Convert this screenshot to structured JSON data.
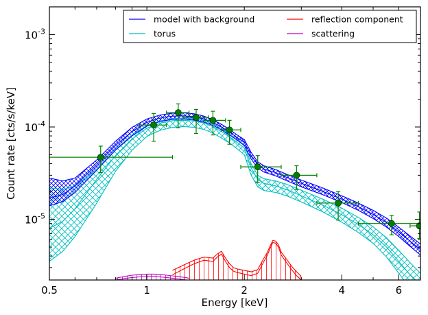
{
  "chart_data": {
    "type": "line",
    "xlabel": "Energy [keV]",
    "ylabel": "Count rate [cts/s/keV]",
    "xscale": "log",
    "yscale": "log",
    "xlim": [
      0.5,
      7.0
    ],
    "ylim": [
      2.2e-06,
      0.002
    ],
    "grid": false,
    "legend_position": "top-right",
    "x_ticks": [
      {
        "value": 0.5,
        "label": "0.5"
      },
      {
        "value": 1,
        "label": "1"
      },
      {
        "value": 2,
        "label": "2"
      },
      {
        "value": 4,
        "label": "4"
      },
      {
        "value": 6,
        "label": "6"
      }
    ],
    "y_ticks": [
      {
        "value": 1e-05,
        "base": "10",
        "exp": "-5"
      },
      {
        "value": 0.0001,
        "base": "10",
        "exp": "-4"
      },
      {
        "value": 0.001,
        "base": "10",
        "exp": "-3"
      }
    ],
    "legend": [
      {
        "label": "model with background",
        "color": "#0000ff"
      },
      {
        "label": "reflection component",
        "color": "#ff0000"
      },
      {
        "label": "torus",
        "color": "#00bfbf"
      },
      {
        "label": "scattering",
        "color": "#bf00bf"
      }
    ],
    "series": [
      {
        "name": "model with background",
        "color": "#0000ff",
        "x": [
          0.5,
          0.55,
          0.6,
          0.7,
          0.8,
          0.9,
          1.0,
          1.1,
          1.2,
          1.3,
          1.4,
          1.5,
          1.6,
          1.7,
          1.8,
          1.9,
          2.0,
          2.1,
          2.2,
          2.3,
          2.5,
          2.7,
          3.0,
          3.5,
          4.0,
          4.5,
          5.0,
          5.5,
          6.0,
          6.5,
          7.0
        ],
        "y": [
          1.7e-05,
          1.85e-05,
          2.3e-05,
          3.9e-05,
          6.3e-05,
          8.9e-05,
          0.000112,
          0.000125,
          0.000131,
          0.000132,
          0.000129,
          0.000122,
          0.000112,
          0.0001,
          8.8e-05,
          7.7e-05,
          6.8e-05,
          4.9e-05,
          3.9e-05,
          3.5e-05,
          3.2e-05,
          2.85e-05,
          2.45e-05,
          2e-05,
          1.65e-05,
          1.37e-05,
          1.13e-05,
          9.2e-06,
          7.3e-06,
          5.8e-06,
          4.7e-06
        ],
        "y_low": [
          1.4e-05,
          1.55e-05,
          1.95e-05,
          3.4e-05,
          5.6e-05,
          8e-05,
          0.000102,
          0.000115,
          0.000121,
          0.000122,
          0.000119,
          0.000113,
          0.000104,
          9.3e-05,
          8.2e-05,
          7.2e-05,
          6.3e-05,
          4.5e-05,
          3.6e-05,
          3.25e-05,
          2.95e-05,
          2.62e-05,
          2.25e-05,
          1.84e-05,
          1.52e-05,
          1.25e-05,
          1.02e-05,
          8.2e-06,
          6.5e-06,
          5.1e-06,
          4.1e-06
        ],
        "y_high": [
          2.8e-05,
          2.6e-05,
          2.8e-05,
          4.4e-05,
          7e-05,
          9.9e-05,
          0.000122,
          0.000135,
          0.000141,
          0.000142,
          0.000139,
          0.000131,
          0.00012,
          0.000107,
          9.4e-05,
          8.2e-05,
          7.3e-05,
          5.3e-05,
          4.2e-05,
          3.8e-05,
          3.45e-05,
          3.08e-05,
          2.66e-05,
          2.18e-05,
          1.8e-05,
          1.5e-05,
          1.25e-05,
          1.03e-05,
          8.2e-06,
          6.6e-06,
          5.4e-06
        ]
      },
      {
        "name": "torus",
        "color": "#00bfbf",
        "x": [
          0.5,
          0.55,
          0.6,
          0.7,
          0.8,
          0.9,
          1.0,
          1.1,
          1.2,
          1.3,
          1.4,
          1.5,
          1.6,
          1.7,
          1.8,
          1.9,
          2.0,
          2.1,
          2.2,
          2.3,
          2.5,
          2.7,
          3.0,
          3.5,
          4.0,
          4.5,
          5.0,
          5.5,
          6.0,
          6.5,
          7.0
        ],
        "y": [
          8e-06,
          9.5e-06,
          1.3e-05,
          2.7e-05,
          4.9e-05,
          7.4e-05,
          9.7e-05,
          0.00011,
          0.000117,
          0.000118,
          0.000116,
          0.00011,
          0.000101,
          8.9e-05,
          7.8e-05,
          6.8e-05,
          5.9e-05,
          3.6e-05,
          2.7e-05,
          2.45e-05,
          2.3e-05,
          2.1e-05,
          1.8e-05,
          1.42e-05,
          1.12e-05,
          8.8e-06,
          6.8e-06,
          5e-06,
          3.5e-06,
          2.5e-06,
          1.9e-06
        ],
        "y_low": [
          3.5e-06,
          4.5e-06,
          6.5e-06,
          1.5e-05,
          3.3e-05,
          5.6e-05,
          7.9e-05,
          9.2e-05,
          9.9e-05,
          0.000101,
          9.9e-05,
          9.4e-05,
          8.6e-05,
          7.6e-05,
          6.7e-05,
          5.8e-05,
          5e-05,
          3e-05,
          2.25e-05,
          2.05e-05,
          1.95e-05,
          1.8e-05,
          1.54e-05,
          1.2e-05,
          9.3e-06,
          7.2e-06,
          5.5e-06,
          3.9e-06,
          2.6e-06,
          1.8e-06,
          1.3e-06
        ],
        "y_high": [
          2.2e-05,
          2.1e-05,
          2.3e-05,
          3.5e-05,
          5.7e-05,
          8.2e-05,
          0.000104,
          0.000117,
          0.000124,
          0.000125,
          0.000123,
          0.000117,
          0.000108,
          9.6e-05,
          8.4e-05,
          7.3e-05,
          6.4e-05,
          4e-05,
          3e-05,
          2.75e-05,
          2.6e-05,
          2.4e-05,
          2.06e-05,
          1.65e-05,
          1.32e-05,
          1.05e-05,
          8.3e-06,
          6.3e-06,
          4.6e-06,
          3.4e-06,
          2.6e-06
        ]
      },
      {
        "name": "reflection component",
        "color": "#ff0000",
        "x": [
          1.2,
          1.3,
          1.4,
          1.5,
          1.6,
          1.65,
          1.7,
          1.75,
          1.8,
          1.85,
          1.9,
          1.95,
          2.0,
          2.1,
          2.2,
          2.3,
          2.35,
          2.4,
          2.45,
          2.5,
          2.55,
          2.6,
          2.7,
          2.8,
          2.9,
          3.0
        ],
        "y": [
          2.5e-06,
          2.9e-06,
          3.3e-06,
          3.6e-06,
          3.5e-06,
          3.9e-06,
          4.2e-06,
          3.5e-06,
          3e-06,
          2.75e-06,
          2.65e-06,
          2.6e-06,
          2.55e-06,
          2.45e-06,
          2.6e-06,
          3.5e-06,
          4e-06,
          4.8e-06,
          5.6e-06,
          5.5e-06,
          5e-06,
          4.1e-06,
          3.4e-06,
          2.85e-06,
          2.45e-06,
          2.2e-06
        ],
        "y_low": [
          2.2e-06,
          2.5e-06,
          2.8e-06,
          3.1e-06,
          3e-06,
          3.4e-06,
          3.7e-06,
          3e-06,
          2.6e-06,
          2.4e-06,
          2.3e-06,
          2.25e-06,
          2.2e-06,
          2.2e-06,
          2.25e-06,
          3e-06,
          3.5e-06,
          4.2e-06,
          4.9e-06,
          4.8e-06,
          4.4e-06,
          3.6e-06,
          3e-06,
          2.5e-06,
          2.2e-06,
          2.2e-06
        ],
        "y_high": [
          2.8e-06,
          3.2e-06,
          3.6e-06,
          3.9e-06,
          3.8e-06,
          4.2e-06,
          4.5e-06,
          3.8e-06,
          3.3e-06,
          3e-06,
          2.9e-06,
          2.85e-06,
          2.8e-06,
          2.7e-06,
          2.85e-06,
          3.8e-06,
          4.3e-06,
          5.1e-06,
          5.9e-06,
          5.8e-06,
          5.3e-06,
          4.4e-06,
          3.7e-06,
          3.1e-06,
          2.7e-06,
          2.4e-06
        ]
      },
      {
        "name": "scattering",
        "color": "#bf00bf",
        "x": [
          0.8,
          0.85,
          0.9,
          0.95,
          1.0,
          1.05,
          1.1,
          1.15,
          1.2,
          1.25,
          1.3,
          1.35
        ],
        "y": [
          2.2e-06,
          2.28e-06,
          2.34e-06,
          2.38e-06,
          2.4e-06,
          2.4e-06,
          2.38e-06,
          2.34e-06,
          2.3e-06,
          2.26e-06,
          2.22e-06,
          2.18e-06
        ],
        "y_low": [
          2.1e-06,
          2.15e-06,
          2.2e-06,
          2.23e-06,
          2.25e-06,
          2.25e-06,
          2.23e-06,
          2.2e-06,
          2.16e-06,
          2.12e-06,
          2.08e-06,
          2.05e-06
        ],
        "y_high": [
          2.3e-06,
          2.4e-06,
          2.48e-06,
          2.52e-06,
          2.55e-06,
          2.55e-06,
          2.53e-06,
          2.48e-06,
          2.44e-06,
          2.4e-06,
          2.35e-06,
          2.3e-06
        ]
      }
    ],
    "data_points": {
      "color": "#008000",
      "marker": "circle",
      "points": [
        {
          "x": 0.72,
          "y": 4.7e-05,
          "xerr": [
            0.5,
            1.2
          ],
          "yerr": [
            3.2e-05,
            6.2e-05
          ]
        },
        {
          "x": 1.05,
          "y": 0.000105,
          "xerr": [
            0.95,
            1.15
          ],
          "yerr": [
            7e-05,
            0.00014
          ]
        },
        {
          "x": 1.25,
          "y": 0.000143,
          "xerr": [
            1.15,
            1.35
          ],
          "yerr": [
            9.8e-05,
            0.000178
          ]
        },
        {
          "x": 1.42,
          "y": 0.000127,
          "xerr": [
            1.3,
            1.55
          ],
          "yerr": [
            8.5e-05,
            0.000155
          ]
        },
        {
          "x": 1.6,
          "y": 0.000118,
          "xerr": [
            1.5,
            1.75
          ],
          "yerr": [
            8.2e-05,
            0.000148
          ]
        },
        {
          "x": 1.8,
          "y": 9.3e-05,
          "xerr": [
            1.7,
            1.95
          ],
          "yerr": [
            6.5e-05,
            0.000118
          ]
        },
        {
          "x": 2.2,
          "y": 3.7e-05,
          "xerr": [
            1.95,
            2.6
          ],
          "yerr": [
            2.5e-05,
            4.9e-05
          ]
        },
        {
          "x": 2.9,
          "y": 3e-05,
          "xerr": [
            2.6,
            3.35
          ],
          "yerr": [
            2.1e-05,
            3.8e-05
          ]
        },
        {
          "x": 3.9,
          "y": 1.5e-05,
          "xerr": [
            3.35,
            4.5
          ],
          "yerr": [
            9.8e-06,
            2e-05
          ]
        },
        {
          "x": 5.7,
          "y": 9e-06,
          "xerr": [
            4.5,
            7.0
          ],
          "yerr": [
            6.8e-06,
            1.1e-05
          ]
        },
        {
          "x": 6.95,
          "y": 8.5e-06,
          "xerr": [
            6.5,
            7.0
          ],
          "yerr": [
            6.2e-06,
            1.2e-05
          ]
        }
      ]
    }
  }
}
